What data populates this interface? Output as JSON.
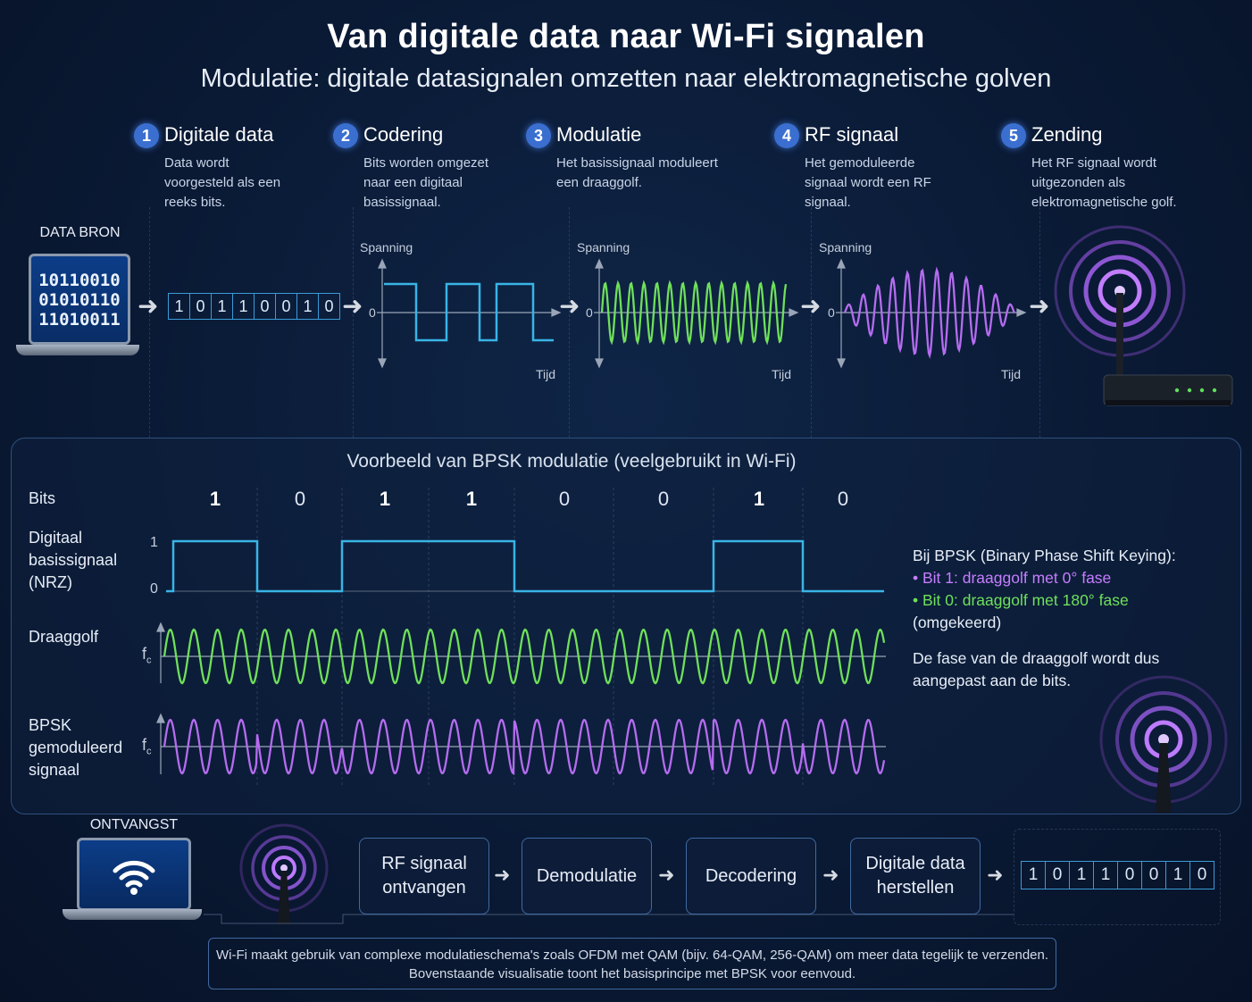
{
  "header": {
    "title": "Van digitale data naar Wi-Fi signalen",
    "subtitle": "Modulatie: digitale datasignalen omzetten naar elektromagnetische golven"
  },
  "steps": [
    {
      "num": "1",
      "title": "Digitale data",
      "desc": "Data wordt voorgesteld als een reeks bits."
    },
    {
      "num": "2",
      "title": "Codering",
      "desc": "Bits worden omgezet naar een digitaal basissignaal."
    },
    {
      "num": "3",
      "title": "Modulatie",
      "desc": "Het basissignaal moduleert een draaggolf."
    },
    {
      "num": "4",
      "title": "RF signaal",
      "desc": "Het gemoduleerde signaal wordt een RF signaal."
    },
    {
      "num": "5",
      "title": "Zending",
      "desc": "Het RF signaal wordt uitgezonden als elektromagnetische golf."
    }
  ],
  "source": {
    "label": "DATA BRON",
    "screen_lines": [
      "10110010",
      "01010110",
      "11010011"
    ],
    "bits": [
      "1",
      "0",
      "1",
      "1",
      "0",
      "0",
      "1",
      "0"
    ]
  },
  "axes": {
    "y_label": "Spanning",
    "x_label": "Tijd",
    "zero": "0"
  },
  "bpsk": {
    "title": "Voorbeeld van BPSK modulatie (veelgebruikt in Wi-Fi)",
    "row_bits": "Bits",
    "row_baseband": [
      "Digitaal",
      "basissignaal",
      "(NRZ)"
    ],
    "row_carrier": "Draaggolf",
    "row_modulated": [
      "BPSK",
      "gemoduleerd",
      "signaal"
    ],
    "level_one": "1",
    "level_zero": "0",
    "fc_label": "f",
    "fc_sub": "c",
    "bits": [
      "1",
      "0",
      "1",
      "1",
      "0",
      "0",
      "1",
      "0"
    ],
    "explain_heading": "Bij BPSK (Binary Phase Shift Keying):",
    "bullet1": "Bit 1: draaggolf met 0° fase",
    "bullet2": "Bit 0: draaggolf met 180° fase",
    "bullet2_suffix": " (omgekeerd)",
    "explain_footer": "De fase van de draaggolf wordt dus aangepast aan de bits."
  },
  "receive": {
    "label": "ONTVANGST",
    "steps": [
      "RF signaal ontvangen",
      "Demodulatie",
      "Decodering",
      "Digitale data herstellen"
    ],
    "bits": [
      "1",
      "0",
      "1",
      "1",
      "0",
      "0",
      "1",
      "0"
    ]
  },
  "note": {
    "line1": "Wi-Fi maakt gebruik van complexe modulatieschema's zoals OFDM met QAM (bijv. 64-QAM, 256-QAM) om meer data tegelijk te verzenden.",
    "line2": "Bovenstaande visualisatie toont het basisprincipe met BPSK voor eenvoud."
  },
  "colors": {
    "square": "#39b4e6",
    "carrier": "#6fe05a",
    "modulated": "#b56cf0",
    "accent": "#3a6fd0"
  }
}
